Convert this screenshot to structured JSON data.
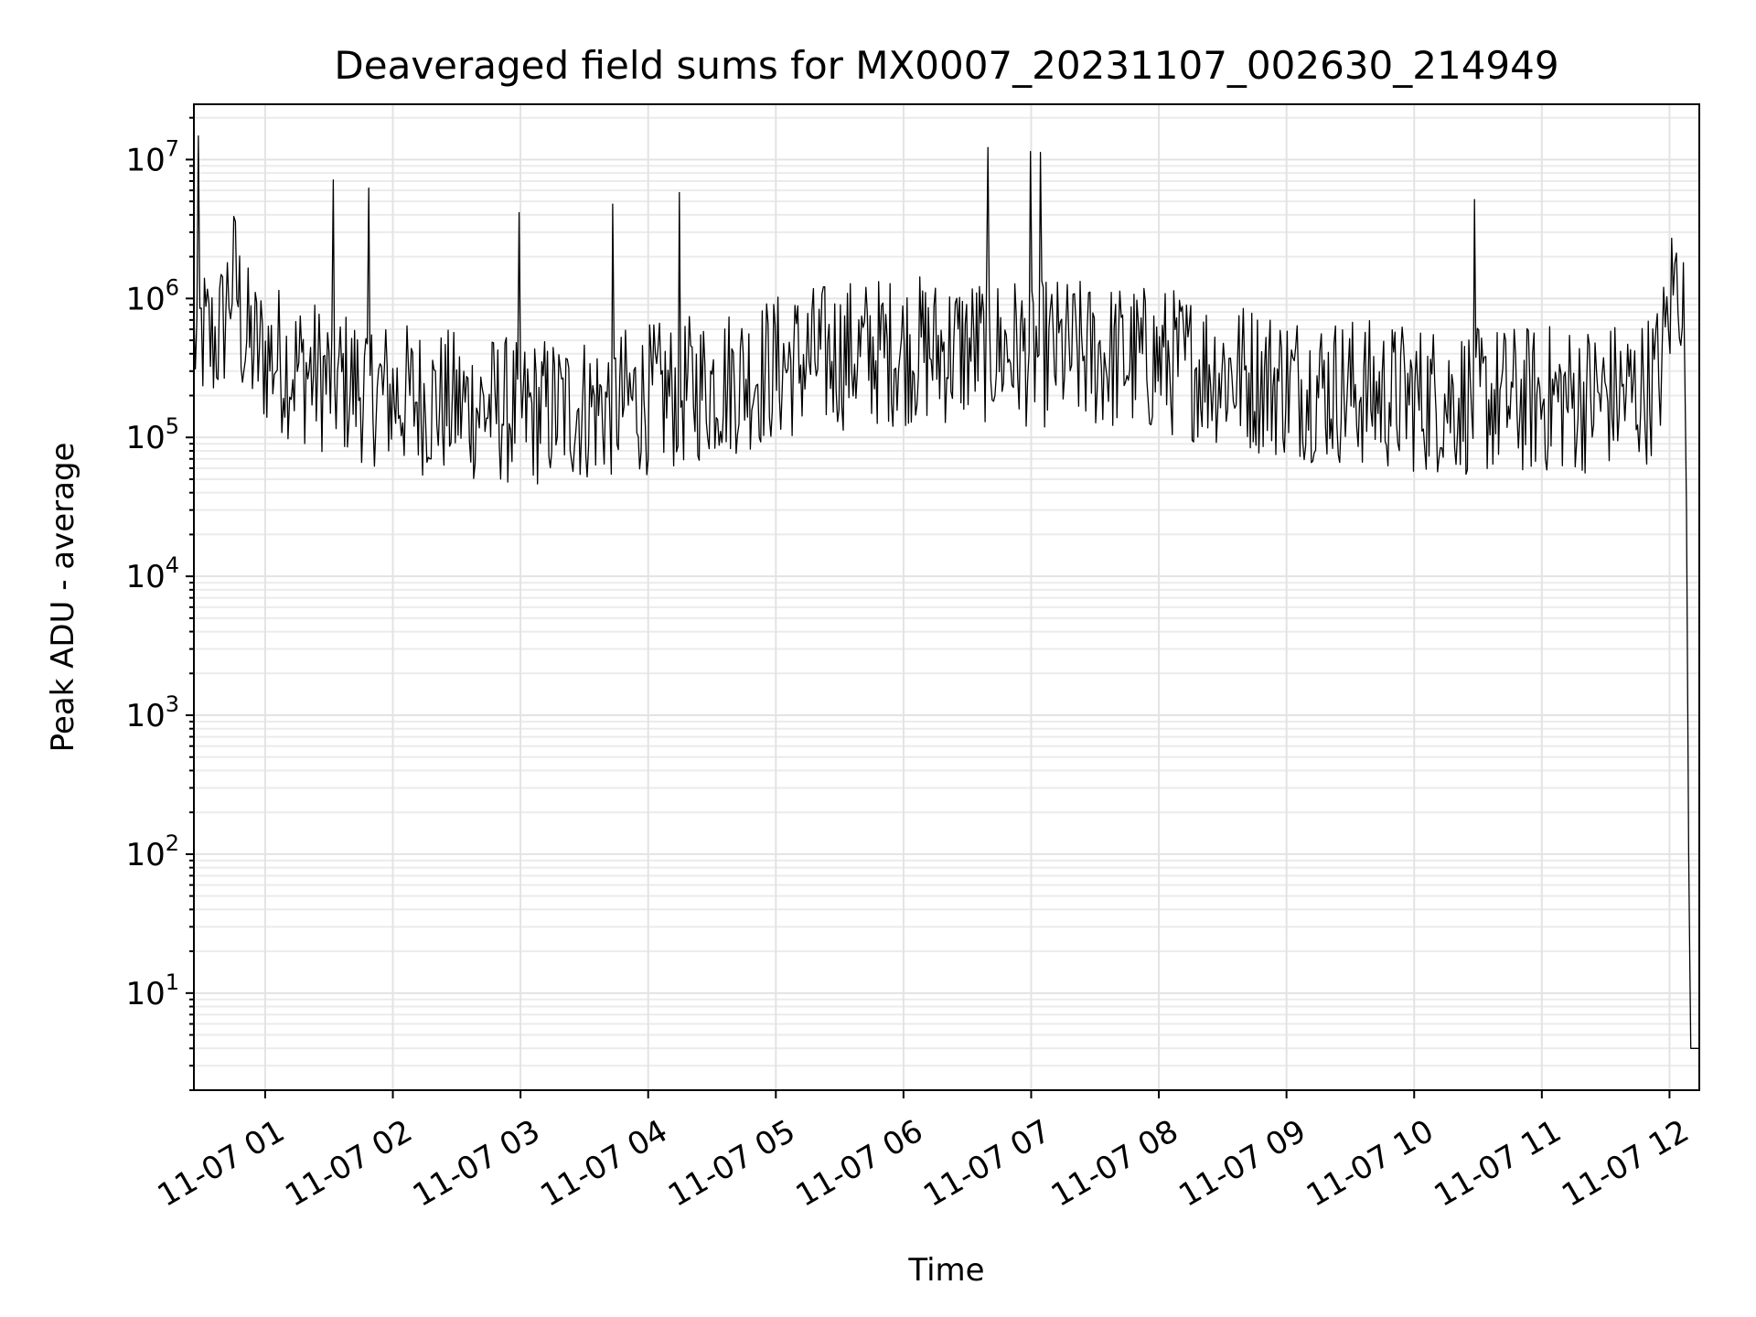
{
  "chart_data": {
    "type": "line",
    "title": "Deaveraged field sums for MX0007_20231107_002630_214949",
    "xlabel": "Time",
    "ylabel": "Peak ADU - average",
    "yscale": "log",
    "ylim": [
      2,
      25000000
    ],
    "xlim": [
      "2023-11-07 00:26:30",
      "2023-11-07 12:14:00"
    ],
    "grid": true,
    "grid_minor": true,
    "legend": "none",
    "colors": {
      "line": "#000000",
      "grid": "#e3e3e3",
      "background": "#ffffff"
    },
    "x_ticks": [
      {
        "t": "2023-11-07 01:00",
        "label": "11-07 01"
      },
      {
        "t": "2023-11-07 02:00",
        "label": "11-07 02"
      },
      {
        "t": "2023-11-07 03:00",
        "label": "11-07 03"
      },
      {
        "t": "2023-11-07 04:00",
        "label": "11-07 04"
      },
      {
        "t": "2023-11-07 05:00",
        "label": "11-07 05"
      },
      {
        "t": "2023-11-07 06:00",
        "label": "11-07 06"
      },
      {
        "t": "2023-11-07 07:00",
        "label": "11-07 07"
      },
      {
        "t": "2023-11-07 08:00",
        "label": "11-07 08"
      },
      {
        "t": "2023-11-07 09:00",
        "label": "11-07 09"
      },
      {
        "t": "2023-11-07 10:00",
        "label": "11-07 10"
      },
      {
        "t": "2023-11-07 11:00",
        "label": "11-07 11"
      },
      {
        "t": "2023-11-07 12:00",
        "label": "11-07 12"
      }
    ],
    "y_ticks": [
      {
        "value": 10,
        "base": "10",
        "exp": "1"
      },
      {
        "value": 100,
        "base": "10",
        "exp": "2"
      },
      {
        "value": 1000,
        "base": "10",
        "exp": "3"
      },
      {
        "value": 10000,
        "base": "10",
        "exp": "4"
      },
      {
        "value": 100000,
        "base": "10",
        "exp": "5"
      },
      {
        "value": 1000000,
        "base": "10",
        "exp": "6"
      },
      {
        "value": 10000000,
        "base": "10",
        "exp": "7"
      }
    ],
    "series": [
      {
        "x": [
          "2023-11-07 00:26:30",
          "2023-11-07 00:30",
          "2023-11-07 00:35",
          "2023-11-07 00:40",
          "2023-11-07 00:43",
          "2023-11-07 00:46",
          "2023-11-07 00:48",
          "2023-11-07 00:50",
          "2023-11-07 00:52",
          "2023-11-07 00:54",
          "2023-11-07 00:56",
          "2023-11-07 00:58",
          "2023-11-07 01:05",
          "2023-11-07 01:10",
          "2023-11-07 01:13",
          "2023-11-07 01:20",
          "2023-11-07 01:24",
          "2023-11-07 01:30",
          "2023-11-07 01:40",
          "2023-11-07 01:50",
          "2023-11-07 02:00",
          "2023-11-07 02:10",
          "2023-11-07 02:20",
          "2023-11-07 02:30",
          "2023-11-07 02:40",
          "2023-11-07 02:50",
          "2023-11-07 03:00",
          "2023-11-07 03:10",
          "2023-11-07 03:20",
          "2023-11-07 03:30",
          "2023-11-07 03:40",
          "2023-11-07 03:50",
          "2023-11-07 04:00",
          "2023-11-07 04:10",
          "2023-11-07 04:20",
          "2023-11-07 04:30",
          "2023-11-07 04:40",
          "2023-11-07 04:48",
          "2023-11-07 04:55",
          "2023-11-07 05:05",
          "2023-11-07 05:15",
          "2023-11-07 05:25",
          "2023-11-07 05:35",
          "2023-11-07 05:45",
          "2023-11-07 05:55",
          "2023-11-07 06:05",
          "2023-11-07 06:15",
          "2023-11-07 06:25",
          "2023-11-07 06:35",
          "2023-11-07 06:45",
          "2023-11-07 06:55",
          "2023-11-07 07:05",
          "2023-11-07 07:15",
          "2023-11-07 07:25",
          "2023-11-07 07:35",
          "2023-11-07 07:45",
          "2023-11-07 07:55",
          "2023-11-07 08:05",
          "2023-11-07 08:15",
          "2023-11-07 08:25",
          "2023-11-07 08:35",
          "2023-11-07 08:45",
          "2023-11-07 08:55",
          "2023-11-07 09:05",
          "2023-11-07 09:15",
          "2023-11-07 09:25",
          "2023-11-07 09:35",
          "2023-11-07 09:45",
          "2023-11-07 09:55",
          "2023-11-07 10:05",
          "2023-11-07 10:15",
          "2023-11-07 10:25",
          "2023-11-07 10:35",
          "2023-11-07 10:45",
          "2023-11-07 10:55",
          "2023-11-07 11:05",
          "2023-11-07 11:15",
          "2023-11-07 11:25",
          "2023-11-07 11:35",
          "2023-11-07 11:45",
          "2023-11-07 11:50",
          "2023-11-07 11:55",
          "2023-11-07 11:58",
          "2023-11-07 12:01",
          "2023-11-07 12:04",
          "2023-11-07 12:06",
          "2023-11-07 12:07",
          "2023-11-07 12:08",
          "2023-11-07 12:09",
          "2023-11-07 12:10",
          "2023-11-07 12:12",
          "2023-11-07 12:14"
        ],
        "y": [
          500000,
          550000,
          480000,
          600000,
          1200000,
          1400000,
          900000,
          480000,
          500000,
          450000,
          420000,
          400000,
          380000,
          350000,
          320000,
          300000,
          280000,
          260000,
          240000,
          220000,
          200000,
          190000,
          180000,
          170000,
          165000,
          160000,
          150000,
          155000,
          160000,
          165000,
          170000,
          180000,
          190000,
          200000,
          220000,
          240000,
          260000,
          280000,
          300000,
          330000,
          360000,
          380000,
          400000,
          410000,
          420000,
          430000,
          420000,
          430000,
          440000,
          430000,
          420000,
          410000,
          400000,
          390000,
          380000,
          370000,
          360000,
          350000,
          330000,
          310000,
          290000,
          270000,
          250000,
          240000,
          230000,
          220000,
          210000,
          200000,
          195000,
          190000,
          190000,
          185000,
          185000,
          185000,
          185000,
          190000,
          190000,
          195000,
          200000,
          210000,
          230000,
          280000,
          500000,
          1100000,
          1500000,
          1200000,
          500000,
          30000,
          100,
          4,
          4,
          4
        ]
      }
    ],
    "annotations": []
  }
}
